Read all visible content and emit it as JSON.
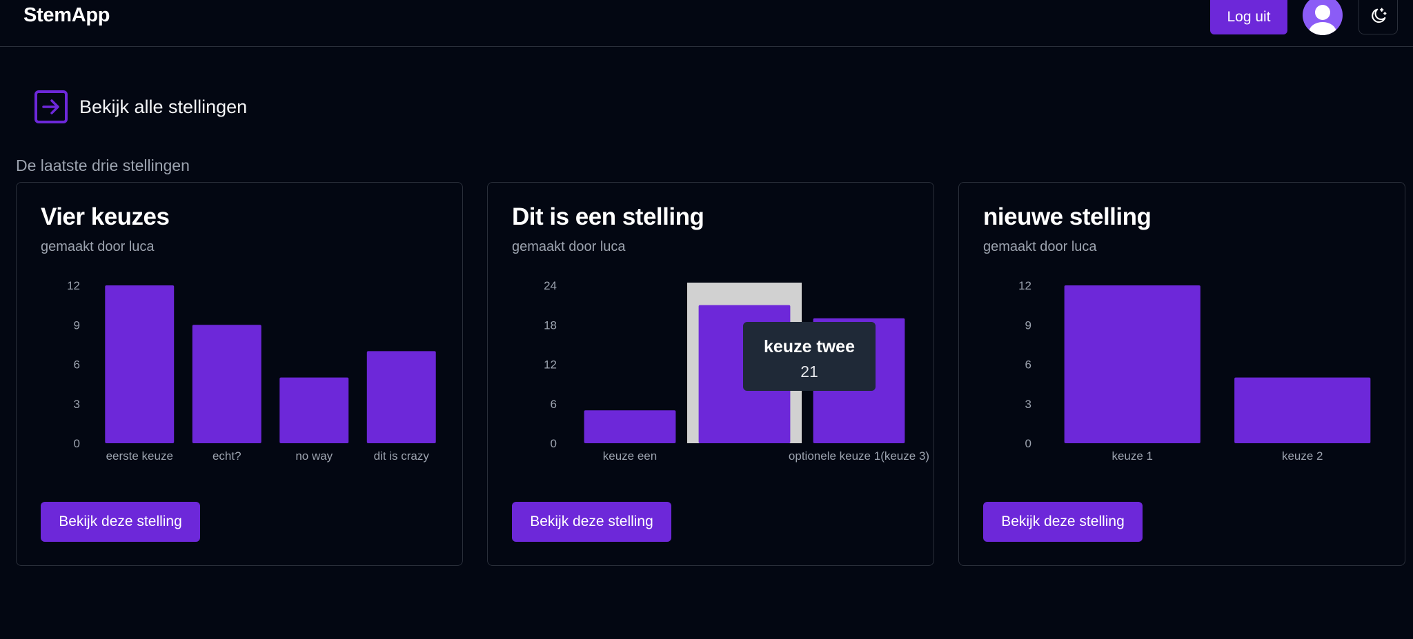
{
  "header": {
    "brand": "StemApp",
    "logout_label": "Log uit",
    "avatar_icon": "user-icon",
    "theme_icon": "moon-stars-icon"
  },
  "all_link": {
    "icon": "arrow-right-square-icon",
    "label": "Bekijk alle stellingen"
  },
  "section_title": "De laatste drie stellingen",
  "colors": {
    "accent": "#6d28d9",
    "background": "#030712",
    "hover_band": "#d1d1d1",
    "tooltip_bg": "#1f2937"
  },
  "cards": [
    {
      "title": "Vier keuzes",
      "author": "gemaakt door luca",
      "button": "Bekijk deze stelling"
    },
    {
      "title": "Dit is een stelling",
      "author": "gemaakt door luca",
      "button": "Bekijk deze stelling"
    },
    {
      "title": "nieuwe stelling",
      "author": "gemaakt door luca",
      "button": "Bekijk deze stelling"
    }
  ],
  "chart_data": [
    {
      "type": "bar",
      "categories": [
        "eerste keuze",
        "echt?",
        "no way",
        "dit is crazy"
      ],
      "values": [
        12,
        9,
        5,
        7
      ],
      "yticks": [
        0,
        3,
        6,
        9,
        12
      ],
      "ylim": [
        0,
        12
      ],
      "xlabel": "",
      "ylabel": ""
    },
    {
      "type": "bar",
      "categories": [
        "keuze een",
        "keuze twee",
        "optionele keuze 1(keuze 3)"
      ],
      "category_labels_shown": [
        "keuze een",
        "",
        "optionele keuze 1(keuze 3)"
      ],
      "values": [
        5,
        21,
        19
      ],
      "yticks": [
        0,
        6,
        12,
        18,
        24
      ],
      "ylim": [
        0,
        24
      ],
      "xlabel": "",
      "ylabel": "",
      "active_index": 1,
      "tooltip": {
        "label": "keuze twee",
        "value": "21"
      }
    },
    {
      "type": "bar",
      "categories": [
        "keuze 1",
        "keuze 2"
      ],
      "values": [
        12,
        5
      ],
      "yticks": [
        0,
        3,
        6,
        9,
        12
      ],
      "ylim": [
        0,
        12
      ],
      "xlabel": "",
      "ylabel": ""
    }
  ]
}
